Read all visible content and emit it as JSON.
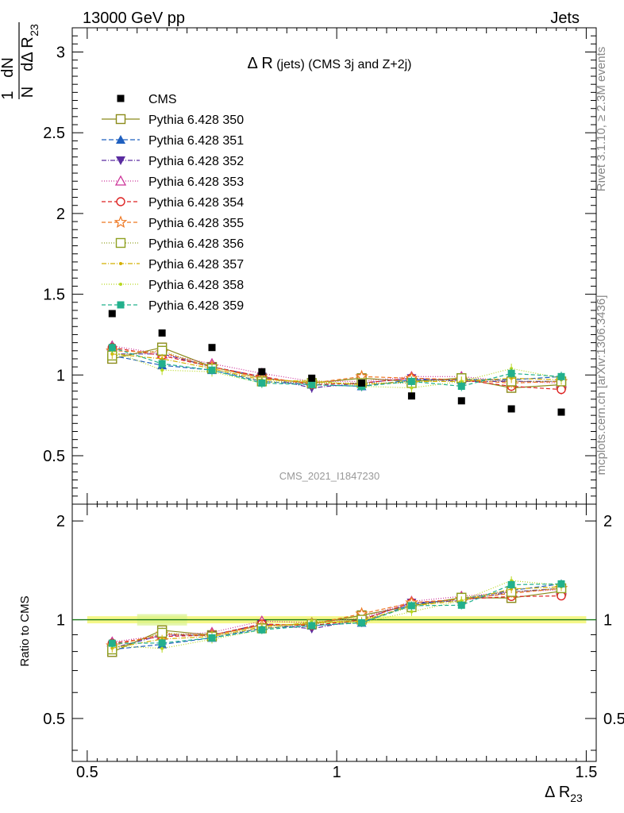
{
  "header": {
    "energy_label": "13000 GeV pp",
    "process_label": "Jets"
  },
  "side_labels": {
    "rivet": "Rivet 3.1.10, ≥ 2.3M events",
    "mcplots": "mcplots.cern.ch [arXiv:1306.3436]"
  },
  "main_plot": {
    "title_main": "Δ R",
    "title_sub": " (jets) (CMS 3j and Z+2j)",
    "ylabel_frac_num": "1",
    "ylabel_frac_den": "N",
    "ylabel_dN": "dN",
    "ylabel_d": "dΔ R",
    "ylabel_sub": "23",
    "watermark": "CMS_2021_I1847230",
    "ytick_labels": [
      "0.5",
      "1",
      "1.5",
      "2",
      "2.5",
      "3"
    ]
  },
  "ratio_plot": {
    "ylabel": "Ratio to CMS",
    "ytick_labels": [
      "0.5",
      "1",
      "2"
    ]
  },
  "x_axis": {
    "label_main": "Δ R",
    "label_sub": "23",
    "tick_labels": [
      "0.5",
      "1",
      "1.5"
    ]
  },
  "chart_data": {
    "type": "scatter",
    "x": [
      0.55,
      0.65,
      0.75,
      0.85,
      0.95,
      1.05,
      1.15,
      1.25,
      1.35,
      1.45
    ],
    "xlim": [
      0.47,
      1.52
    ],
    "ylim": [
      0.2,
      3.15
    ],
    "ratio_ylim": [
      0.37,
      2.25
    ],
    "ratio_log": true,
    "data": {
      "name": "CMS",
      "values": [
        1.38,
        1.26,
        1.17,
        1.02,
        0.98,
        0.95,
        0.87,
        0.84,
        0.79,
        0.77
      ]
    },
    "series": [
      {
        "name": "Pythia 6.428 350",
        "color": "#8b8b1a",
        "marker": "square-open",
        "dash": "",
        "values": [
          1.1,
          1.17,
          1.05,
          0.98,
          0.95,
          0.98,
          0.96,
          0.98,
          0.92,
          0.94
        ]
      },
      {
        "name": "Pythia 6.428 351",
        "color": "#1f5fbf",
        "marker": "triangle-up",
        "dash": "6,3",
        "values": [
          1.12,
          1.06,
          1.03,
          0.96,
          0.94,
          0.93,
          0.97,
          0.97,
          0.97,
          0.99
        ]
      },
      {
        "name": "Pythia 6.428 352",
        "color": "#5a2ca0",
        "marker": "triangle-down",
        "dash": "6,2,1,2",
        "values": [
          1.13,
          1.13,
          1.05,
          0.99,
          0.92,
          0.95,
          0.98,
          0.96,
          0.96,
          0.96
        ]
      },
      {
        "name": "Pythia 6.428 353",
        "color": "#cc3399",
        "marker": "triangle-open",
        "dash": "1,2",
        "values": [
          1.18,
          1.13,
          1.07,
          1.01,
          0.96,
          0.96,
          0.99,
          0.99,
          0.96,
          0.95
        ]
      },
      {
        "name": "Pythia 6.428 354",
        "color": "#dd2222",
        "marker": "circle-open",
        "dash": "5,3",
        "values": [
          1.17,
          1.12,
          1.05,
          0.99,
          0.94,
          0.95,
          0.98,
          0.97,
          0.93,
          0.91
        ]
      },
      {
        "name": "Pythia 6.428 355",
        "color": "#ee7722",
        "marker": "star-open",
        "dash": "5,3",
        "values": [
          1.15,
          1.14,
          1.05,
          0.98,
          0.95,
          0.99,
          0.98,
          0.97,
          0.95,
          0.96
        ]
      },
      {
        "name": "Pythia 6.428 356",
        "color": "#8fa020",
        "marker": "square-open",
        "dash": "1,2",
        "values": [
          1.12,
          1.15,
          1.04,
          0.96,
          0.95,
          0.95,
          0.95,
          0.98,
          0.96,
          0.96
        ]
      },
      {
        "name": "Pythia 6.428 357",
        "color": "#d4b000",
        "marker": "dot",
        "dash": "6,2,1,2",
        "values": [
          1.13,
          1.1,
          1.04,
          0.97,
          0.96,
          0.94,
          0.96,
          0.96,
          0.98,
          0.97
        ]
      },
      {
        "name": "Pythia 6.428 358",
        "color": "#b8d820",
        "marker": "dot",
        "dash": "1,2",
        "values": [
          1.15,
          1.03,
          1.02,
          0.95,
          0.97,
          0.93,
          0.92,
          0.96,
          1.04,
          0.98
        ]
      },
      {
        "name": "Pythia 6.428 359",
        "color": "#22b08c",
        "marker": "square",
        "dash": "5,3",
        "values": [
          1.17,
          1.07,
          1.03,
          0.95,
          0.94,
          0.93,
          0.96,
          0.93,
          1.01,
          0.99
        ]
      }
    ]
  }
}
